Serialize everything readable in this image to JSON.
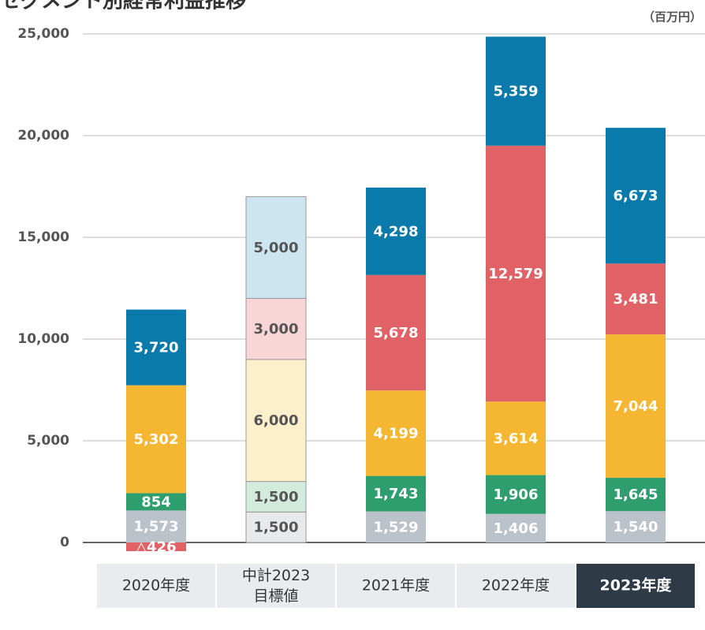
{
  "chart_data": {
    "type": "stacked_bar",
    "title": "セグメント別経常利益推移",
    "unit": "（百万円）",
    "categories": [
      "2020年度",
      "中計2023\n目標値",
      "2021年度",
      "2022年度",
      "2023年度"
    ],
    "highlight": 4,
    "ylim": [
      0,
      25000
    ],
    "yticks": [
      0,
      {
        "value": 5000,
        "label": "5,000"
      },
      {
        "value": 10000,
        "label": "10,000"
      },
      {
        "value": 15000,
        "label": "15,000"
      },
      {
        "value": 20000,
        "label": "20,000"
      },
      {
        "value": 25000,
        "label": "25,000"
      }
    ],
    "grid": true,
    "series": [
      {
        "color": "#bcc2ca",
        "colors": [
          "#bcc2ca",
          "#e8e9eb",
          "#bcc2ca",
          "#bcc2ca",
          "#bcc2ca"
        ],
        "values": [
          1573,
          1500,
          1529,
          1406,
          1540
        ],
        "value_labels": [
          "1,573",
          "1,500",
          "1,529",
          "1,406",
          "1,540"
        ]
      },
      {
        "color": "#2f9e6e",
        "colors": [
          "#2f9e6e",
          "#d3ebdd",
          "#2f9e6e",
          "#2f9e6e",
          "#2f9e6e"
        ],
        "values": [
          854,
          1500,
          1743,
          1906,
          1645
        ],
        "value_labels": [
          "854",
          "1,500",
          "1,743",
          "1,906",
          "1,645"
        ]
      },
      {
        "color": "#f5b731",
        "colors": [
          "#f5b731",
          "#fdefcc",
          "#f5b731",
          "#f5b731",
          "#f5b731"
        ],
        "values": [
          5302,
          6000,
          4199,
          3614,
          7044
        ],
        "value_labels": [
          "5,302",
          "6,000",
          "4,199",
          "3,614",
          "7,044"
        ]
      },
      {
        "color": "#e06166",
        "colors": [
          "#e06166",
          "#f8d5d7",
          "#e06166",
          "#e06166",
          "#e06166"
        ],
        "values": [
          -426,
          3000,
          5678,
          12579,
          3481
        ],
        "value_labels": [
          "△426",
          "3,000",
          "5,678",
          "12,579",
          "3,481"
        ]
      },
      {
        "color": "#0a7aaa",
        "colors": [
          "#0a7aaa",
          "#cde5f0",
          "#0a7aaa",
          "#0a7aaa",
          "#0a7aaa"
        ],
        "values": [
          3720,
          5000,
          4298,
          5359,
          6673
        ],
        "value_labels": [
          "3,720",
          "5,000",
          "4,298",
          "5,359",
          "6,673"
        ]
      }
    ]
  }
}
